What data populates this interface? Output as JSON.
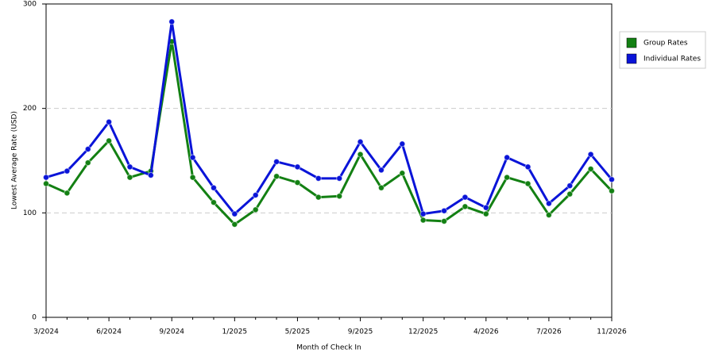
{
  "chart_data": {
    "type": "line",
    "x_label": "Month of Check In",
    "y_label": "Lowest Average Rate (USD)",
    "categories": [
      "3/2024",
      null,
      null,
      "6/2024",
      null,
      null,
      "9/2024",
      null,
      null,
      "1/2025",
      null,
      null,
      "5/2025",
      null,
      null,
      "9/2025",
      null,
      null,
      "12/2025",
      null,
      null,
      "4/2026",
      null,
      null,
      "7/2026",
      null,
      null,
      "11/2026"
    ],
    "series": [
      {
        "name": "Group Rates",
        "color": "#138013",
        "values": [
          128,
          119,
          148,
          169,
          134,
          140,
          264,
          134,
          110,
          89,
          103,
          135,
          129,
          115,
          116,
          156,
          124,
          138,
          93,
          92,
          106,
          99,
          134,
          128,
          98,
          118,
          142,
          121
        ]
      },
      {
        "name": "Individual Rates",
        "color": "#0a14d8",
        "values": [
          134,
          140,
          161,
          187,
          144,
          136,
          283,
          153,
          124,
          99,
          117,
          149,
          144,
          133,
          133,
          168,
          141,
          166,
          99,
          102,
          115,
          105,
          153,
          144,
          109,
          126,
          156,
          132
        ]
      }
    ],
    "ylim": [
      0,
      300
    ],
    "yticks": [
      0,
      100,
      200,
      300
    ],
    "grid": true,
    "legend": "right"
  }
}
